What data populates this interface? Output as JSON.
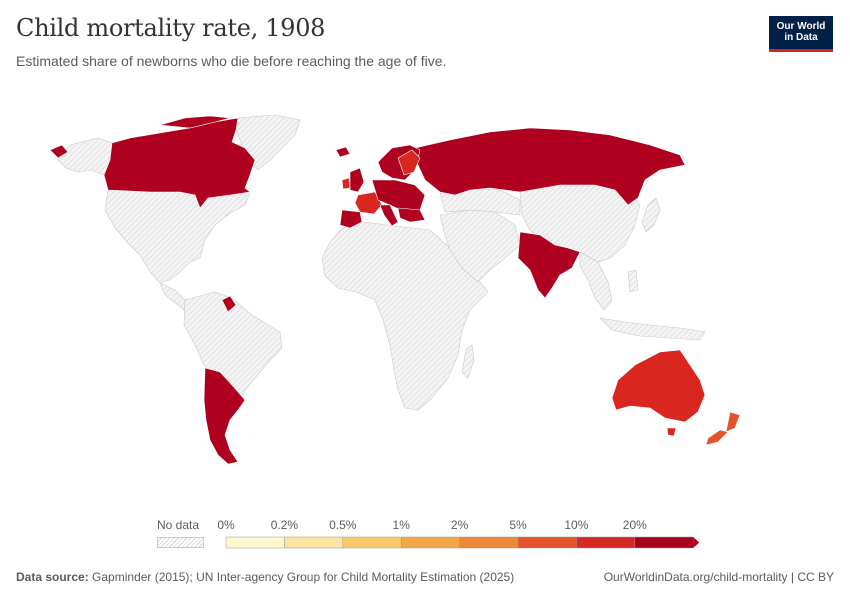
{
  "header": {
    "title": "Child mortality rate, 1908",
    "subtitle": "Estimated share of newborns who die before reaching the age of five."
  },
  "logo": {
    "line1": "Our World",
    "line2": "in Data"
  },
  "legend": {
    "no_data_label": "No data",
    "bins": [
      {
        "label": "0%",
        "color": "#fef7d0"
      },
      {
        "label": "0.2%",
        "color": "#fce3a0"
      },
      {
        "label": "0.5%",
        "color": "#fbc969"
      },
      {
        "label": "1%",
        "color": "#f5a747"
      },
      {
        "label": "2%",
        "color": "#ef8738"
      },
      {
        "label": "5%",
        "color": "#e5532c"
      },
      {
        "label": "10%",
        "color": "#d42a23"
      },
      {
        "label": "20%",
        "color": "#a9021f"
      }
    ],
    "end_color": "#a9021f"
  },
  "colors": {
    "highest": "#b00020",
    "high": "#d9261f",
    "mid": "#e5532c",
    "no_data_fill": "#f2f2f2",
    "no_data_hatch": "#d3d3d3",
    "border": "#ffffff"
  },
  "regions_shown": [
    {
      "name": "Canada",
      "bin": "20%"
    },
    {
      "name": "Russia",
      "bin": "20%"
    },
    {
      "name": "India",
      "bin": "20%"
    },
    {
      "name": "Argentina",
      "bin": "20%"
    },
    {
      "name": "Chile",
      "bin": "20%"
    },
    {
      "name": "Guyana",
      "bin": "20%"
    },
    {
      "name": "Australia",
      "bin": "10%"
    },
    {
      "name": "New Zealand",
      "bin": "5%"
    },
    {
      "name": "Europe",
      "bin": "10%-20%"
    }
  ],
  "footer": {
    "source_label": "Data source:",
    "source_text": "Gapminder (2015); UN Inter-agency Group for Child Mortality Estimation (2025)",
    "url_text": "OurWorldinData.org/child-mortality | CC BY"
  }
}
